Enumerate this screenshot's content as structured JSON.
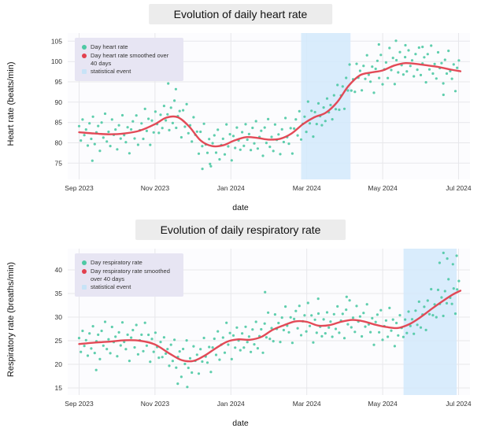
{
  "chart_data": [
    {
      "type": "scatter",
      "title": "Evolution of daily heart rate",
      "xlabel": "date",
      "ylabel": "Heart rate (beats/min)",
      "x_tick_labels": [
        "Sep 2023",
        "Nov 2023",
        "Jan 2024",
        "Mar 2024",
        "May 2024",
        "Jul 2024"
      ],
      "x_tick_values": [
        0,
        2,
        4,
        6,
        8,
        10
      ],
      "x_domain": [
        -0.3,
        10.3
      ],
      "y_ticks": [
        75,
        80,
        85,
        90,
        95,
        100,
        105
      ],
      "y_domain": [
        71,
        107
      ],
      "grid": true,
      "legend_position": "top-left",
      "legend": [
        {
          "label": "Day heart rate",
          "marker": "dot",
          "color": "#4ec9a4"
        },
        {
          "label": "Day heart rate smoothed over 40 days",
          "marker": "dot",
          "color": "#e2404e"
        },
        {
          "label": "statistical event",
          "marker": "square",
          "color": "#c7e3f7"
        }
      ],
      "band_x": [
        5.85,
        7.15
      ],
      "trend": [
        [
          0,
          82.6
        ],
        [
          0.4,
          82.3
        ],
        [
          0.8,
          82.1
        ],
        [
          1.2,
          82.3
        ],
        [
          1.6,
          83.0
        ],
        [
          2.0,
          84.6
        ],
        [
          2.3,
          86.2
        ],
        [
          2.6,
          86.3
        ],
        [
          2.9,
          84.0
        ],
        [
          3.2,
          80.6
        ],
        [
          3.5,
          79.2
        ],
        [
          3.8,
          79.4
        ],
        [
          4.1,
          80.6
        ],
        [
          4.4,
          81.4
        ],
        [
          4.7,
          81.2
        ],
        [
          5.0,
          80.8
        ],
        [
          5.3,
          81.0
        ],
        [
          5.6,
          82.3
        ],
        [
          5.9,
          84.6
        ],
        [
          6.2,
          86.3
        ],
        [
          6.5,
          87.4
        ],
        [
          6.8,
          90.0
        ],
        [
          7.1,
          94.0
        ],
        [
          7.4,
          96.6
        ],
        [
          7.7,
          97.3
        ],
        [
          8.0,
          97.8
        ],
        [
          8.3,
          99.0
        ],
        [
          8.6,
          99.6
        ],
        [
          8.9,
          99.4
        ],
        [
          9.2,
          99.0
        ],
        [
          9.5,
          98.6
        ],
        [
          9.8,
          98.0
        ],
        [
          10.05,
          97.6
        ]
      ],
      "scatter": {
        "x_start": 0,
        "x_step": 0.0457,
        "count": 220,
        "noise_scale": 1.0
      },
      "noise": [
        1.5,
        -2.0,
        3.2,
        -0.6,
        0.8,
        -3.1,
        2.4,
        -1.4,
        4.1,
        -2.6,
        0.3,
        1.9,
        -4.2,
        2.8,
        -0.9,
        5.0,
        -1.8,
        0.6,
        -2.9,
        3.6,
        -0.2,
        1.1,
        -3.8,
        2.1,
        -1.2,
        4.5,
        -0.4,
        -2.2,
        1.4,
        -5.1,
        0.7,
        2.6,
        -1.7,
        3.9,
        -3.4,
        0.1,
        1.6,
        -2.4,
        4.8,
        -0.8,
        2.0,
        -4.6,
        1.2,
        -1.9,
        3.0,
        -0.3,
        -2.7
      ],
      "outliers": [
        [
          0.35,
          75.6
        ],
        [
          2.35,
          94.6
        ],
        [
          2.55,
          93.2
        ],
        [
          3.25,
          73.6
        ],
        [
          3.45,
          74.8
        ],
        [
          7.9,
          104.2
        ],
        [
          8.35,
          105.1
        ],
        [
          8.6,
          104.0
        ],
        [
          9.05,
          103.6
        ],
        [
          9.6,
          91.8
        ]
      ],
      "colors": {
        "scatter": "#4ec9a4",
        "line": "#e2404e",
        "band": "#d2e9fb",
        "legend_bg": "#e7e5f3",
        "plot_bg": "#fcfcfe",
        "grid": "#e7e7eb"
      }
    },
    {
      "type": "scatter",
      "title": "Evolution of daily respiratory rate",
      "xlabel": "date",
      "ylabel": "Respiratory rate (breaths/min)",
      "x_tick_labels": [
        "Sep 2023",
        "Nov 2023",
        "Jan 2024",
        "Mar 2024",
        "May 2024",
        "Jul 2024"
      ],
      "x_tick_values": [
        0,
        2,
        4,
        6,
        8,
        10
      ],
      "x_domain": [
        -0.3,
        10.3
      ],
      "y_ticks": [
        15,
        20,
        25,
        30,
        35,
        40
      ],
      "y_domain": [
        13.5,
        44.5
      ],
      "grid": true,
      "legend_position": "top-left",
      "legend": [
        {
          "label": "Day respiratory rate",
          "marker": "dot",
          "color": "#4ec9a4"
        },
        {
          "label": "Day respiratory rate smoothed over 40 days",
          "marker": "dot",
          "color": "#e2404e"
        },
        {
          "label": "statistical event",
          "marker": "square",
          "color": "#c7e3f7"
        }
      ],
      "band_x": [
        8.55,
        9.95
      ],
      "trend": [
        [
          0,
          24.3
        ],
        [
          0.4,
          24.6
        ],
        [
          0.8,
          24.8
        ],
        [
          1.2,
          25.1
        ],
        [
          1.6,
          25.0
        ],
        [
          2.0,
          24.2
        ],
        [
          2.4,
          22.2
        ],
        [
          2.7,
          20.9
        ],
        [
          3.0,
          20.7
        ],
        [
          3.3,
          21.8
        ],
        [
          3.6,
          23.4
        ],
        [
          3.9,
          24.8
        ],
        [
          4.2,
          25.3
        ],
        [
          4.5,
          25.2
        ],
        [
          4.8,
          25.8
        ],
        [
          5.1,
          27.3
        ],
        [
          5.4,
          28.3
        ],
        [
          5.7,
          29.1
        ],
        [
          6.0,
          29.0
        ],
        [
          6.3,
          28.2
        ],
        [
          6.6,
          28.3
        ],
        [
          6.9,
          29.0
        ],
        [
          7.2,
          29.4
        ],
        [
          7.5,
          29.1
        ],
        [
          7.8,
          28.4
        ],
        [
          8.1,
          27.9
        ],
        [
          8.4,
          27.7
        ],
        [
          8.7,
          28.5
        ],
        [
          9.0,
          30.0
        ],
        [
          9.3,
          31.8
        ],
        [
          9.6,
          33.5
        ],
        [
          9.85,
          34.8
        ],
        [
          10.05,
          35.6
        ]
      ],
      "scatter": {
        "x_start": 0,
        "x_step": 0.0457,
        "count": 220,
        "noise_scale": 0.85
      },
      "noise": [
        1.5,
        -2.0,
        3.2,
        -0.6,
        0.8,
        -3.1,
        2.4,
        -1.4,
        4.1,
        -2.6,
        0.3,
        1.9,
        -4.2,
        2.8,
        -0.9,
        5.0,
        -1.8,
        0.6,
        -2.9,
        3.6,
        -0.2,
        1.1,
        -3.8,
        2.1,
        -1.2,
        4.5,
        -0.4,
        -2.2,
        1.4,
        -5.1,
        0.7,
        2.6,
        -1.7,
        3.9,
        -3.4,
        0.1,
        1.6,
        -2.4,
        4.8,
        -0.8,
        2.0,
        -4.6,
        1.2,
        -1.9,
        3.0,
        -0.3,
        -2.7
      ],
      "outliers": [
        [
          0.45,
          18.8
        ],
        [
          2.6,
          15.9
        ],
        [
          2.85,
          15.2
        ],
        [
          4.9,
          35.3
        ],
        [
          6.3,
          33.9
        ],
        [
          7.05,
          34.3
        ],
        [
          9.5,
          41.5
        ],
        [
          9.6,
          43.6
        ],
        [
          9.7,
          42.4
        ],
        [
          9.85,
          41.2
        ],
        [
          9.95,
          43.0
        ]
      ],
      "colors": {
        "scatter": "#4ec9a4",
        "line": "#e2404e",
        "band": "#d2e9fb",
        "legend_bg": "#e7e5f3",
        "plot_bg": "#fcfcfe",
        "grid": "#e7e7eb"
      }
    }
  ]
}
